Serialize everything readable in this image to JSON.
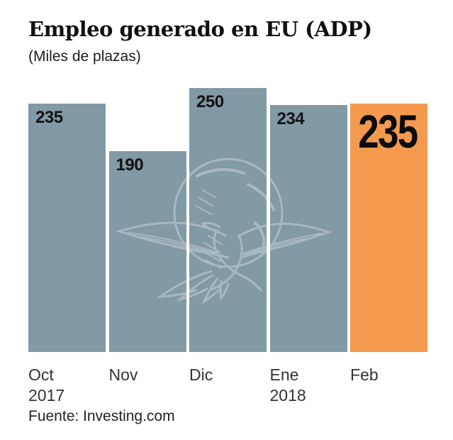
{
  "title": "Empleo generado en EU (ADP)",
  "subtitle": "(Miles de plazas)",
  "source_note": "Fuente: Investing.com",
  "colors": {
    "bar": "#8299a6",
    "highlight_bar": "#f49a4e",
    "value_label": "#121212",
    "axis_label": "#333333",
    "background": "#ffffff"
  },
  "watermark": "eagle-globe-newspaper-logo",
  "chart_data": {
    "type": "bar",
    "categories": [
      {
        "label": "Oct",
        "sub": "2017"
      },
      {
        "label": "Nov",
        "sub": ""
      },
      {
        "label": "Dic",
        "sub": ""
      },
      {
        "label": "Ene",
        "sub": "2018"
      },
      {
        "label": "Feb",
        "sub": ""
      }
    ],
    "values": [
      235,
      190,
      250,
      234,
      235
    ],
    "value_labels": [
      "235",
      "190",
      "250",
      "234",
      "235"
    ],
    "highlight_index": 4,
    "title": "Empleo generado en EU (ADP)",
    "xlabel": "",
    "ylabel": "Miles de plazas",
    "ylim": [
      0,
      258
    ],
    "grid": false,
    "legend": false,
    "value_labels_position": "inside-top-left",
    "highlight_label_style": "extra-large"
  }
}
